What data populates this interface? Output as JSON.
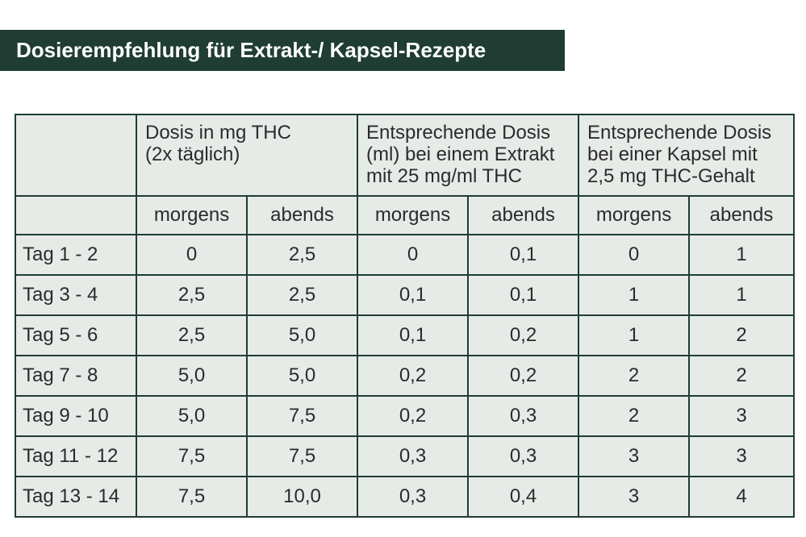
{
  "header": {
    "title": "Dosierempfehlung für Extrakt-/ Kapsel-Rezepte"
  },
  "table": {
    "groups": [
      [
        "Dosis in mg THC",
        "(2x täglich)"
      ],
      [
        "Entsprechende Dosis",
        "(ml) bei einem Extrakt",
        "mit 25 mg/ml THC"
      ],
      [
        "Entsprechende Dosis",
        "bei einer Kapsel mit",
        "2,5 mg THC-Gehalt"
      ]
    ],
    "subheaders": [
      "morgens",
      "abends",
      "morgens",
      "abends",
      "morgens",
      "abends"
    ],
    "rows": [
      [
        "Tag 1 - 2",
        "0",
        "2,5",
        "0",
        "0,1",
        "0",
        "1"
      ],
      [
        "Tag 3 - 4",
        "2,5",
        "2,5",
        "0,1",
        "0,1",
        "1",
        "1"
      ],
      [
        "Tag 5 - 6",
        "2,5",
        "5,0",
        "0,1",
        "0,2",
        "1",
        "2"
      ],
      [
        "Tag 7 - 8",
        "5,0",
        "5,0",
        "0,2",
        "0,2",
        "2",
        "2"
      ],
      [
        "Tag 9 - 10",
        "5,0",
        "7,5",
        "0,2",
        "0,3",
        "2",
        "3"
      ],
      [
        "Tag 11 - 12",
        "7,5",
        "7,5",
        "0,3",
        "0,3",
        "3",
        "3"
      ],
      [
        "Tag 13 - 14",
        "7,5",
        "10,0",
        "0,3",
        "0,4",
        "3",
        "4"
      ]
    ]
  }
}
